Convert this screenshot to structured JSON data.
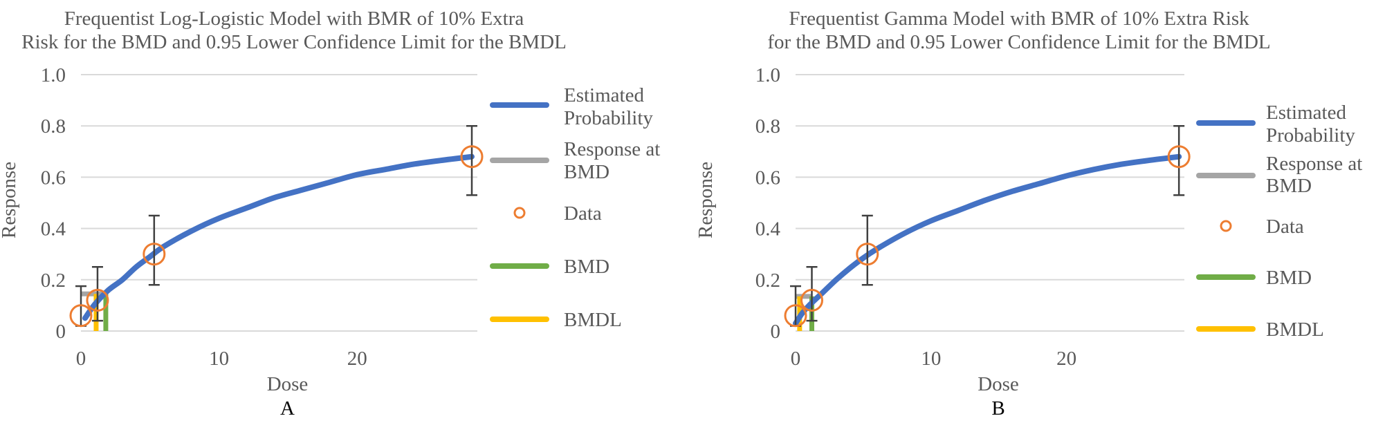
{
  "colors": {
    "estimated_probability": "#4472C4",
    "response_at_bmd": "#A5A5A5",
    "data": "#ED7D31",
    "bmd": "#70AD47",
    "bmdl": "#FFC000",
    "gridline": "#D9D9D9",
    "error_bar": "#404040"
  },
  "chart_data": [
    {
      "type": "line",
      "panel_label": "A",
      "title": [
        "Frequentist Log-Logistic Model with BMR of 10% Extra",
        "Risk for the BMD and 0.95 Lower Confidence Limit for the BMDL"
      ],
      "xlabel": "Dose",
      "ylabel": "Response",
      "xlim": [
        0,
        28.7
      ],
      "ylim": [
        0,
        1.0
      ],
      "xticks": [
        "0",
        "10",
        "20"
      ],
      "yticks": [
        "0",
        "0.2",
        "0.4",
        "0.6",
        "0.8",
        "1.0"
      ],
      "grid": true,
      "legend_position": "right",
      "legend": [
        {
          "key": "estimated_probability",
          "label": [
            "Estimated",
            "Probability"
          ]
        },
        {
          "key": "response_at_bmd",
          "label": [
            "Response at",
            "BMD"
          ]
        },
        {
          "key": "data",
          "label": [
            "Data"
          ]
        },
        {
          "key": "bmd",
          "label": [
            "BMD"
          ]
        },
        {
          "key": "bmdl",
          "label": [
            "BMDL"
          ]
        }
      ],
      "estimated_probability": {
        "x": [
          0.3,
          1,
          2,
          3,
          4,
          5,
          6,
          8,
          10,
          12,
          14,
          16,
          18,
          20,
          22,
          24,
          26,
          28.3
        ],
        "y": [
          0.05,
          0.104,
          0.16,
          0.2,
          0.25,
          0.29,
          0.33,
          0.39,
          0.44,
          0.48,
          0.52,
          0.55,
          0.58,
          0.61,
          0.63,
          0.65,
          0.665,
          0.68
        ]
      },
      "data_points": [
        {
          "x": 0.0,
          "y": 0.06,
          "lower": 0.02,
          "upper": 0.175
        },
        {
          "x": 1.2,
          "y": 0.12,
          "lower": 0.04,
          "upper": 0.25
        },
        {
          "x": 5.3,
          "y": 0.3,
          "lower": 0.18,
          "upper": 0.45
        },
        {
          "x": 28.3,
          "y": 0.68,
          "lower": 0.53,
          "upper": 0.8
        }
      ],
      "response_at_bmd": {
        "x": [
          0.0,
          1.8
        ],
        "y": 0.145
      },
      "bmd": {
        "x": 1.8,
        "y": [
          0,
          0.145
        ]
      },
      "bmdl": {
        "x": 1.1,
        "y": [
          0,
          0.145
        ]
      }
    },
    {
      "type": "line",
      "panel_label": "B",
      "title": [
        "Frequentist Gamma Model with BMR of 10% Extra Risk",
        "for the BMD and 0.95 Lower Confidence Limit for the BMDL"
      ],
      "xlabel": "Dose",
      "ylabel": "Response",
      "xlim": [
        0,
        28.7
      ],
      "ylim": [
        0,
        1.0
      ],
      "xticks": [
        "0",
        "10",
        "20"
      ],
      "yticks": [
        "0",
        "0.2",
        "0.4",
        "0.6",
        "0.8",
        "1.0"
      ],
      "grid": true,
      "legend_position": "right",
      "legend": [
        {
          "key": "estimated_probability",
          "label": [
            "Estimated",
            "Probability"
          ]
        },
        {
          "key": "response_at_bmd",
          "label": [
            "Response at",
            "BMD"
          ]
        },
        {
          "key": "data",
          "label": [
            "Data"
          ]
        },
        {
          "key": "bmd",
          "label": [
            "BMD"
          ]
        },
        {
          "key": "bmdl",
          "label": [
            "BMDL"
          ]
        }
      ],
      "estimated_probability": {
        "x": [
          0.0,
          0.5,
          1,
          2,
          3,
          4,
          5,
          6,
          8,
          10,
          12,
          14,
          16,
          18,
          20,
          22,
          24,
          26,
          28.3
        ],
        "y": [
          0.03,
          0.07,
          0.1,
          0.15,
          0.2,
          0.245,
          0.285,
          0.32,
          0.38,
          0.43,
          0.47,
          0.51,
          0.545,
          0.575,
          0.605,
          0.63,
          0.65,
          0.665,
          0.68
        ]
      },
      "data_points": [
        {
          "x": 0.0,
          "y": 0.06,
          "lower": 0.02,
          "upper": 0.175
        },
        {
          "x": 1.2,
          "y": 0.12,
          "lower": 0.04,
          "upper": 0.25
        },
        {
          "x": 5.3,
          "y": 0.3,
          "lower": 0.18,
          "upper": 0.45
        },
        {
          "x": 28.3,
          "y": 0.68,
          "lower": 0.53,
          "upper": 0.8
        }
      ],
      "response_at_bmd": {
        "x": [
          0.0,
          1.2
        ],
        "y": 0.135
      },
      "bmd": {
        "x": 1.2,
        "y": [
          0,
          0.135
        ]
      },
      "bmdl": {
        "x": 0.3,
        "y": [
          0,
          0.135
        ]
      }
    }
  ]
}
